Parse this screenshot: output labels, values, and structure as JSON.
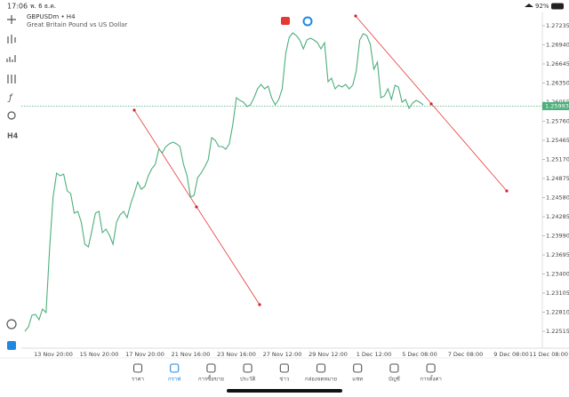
{
  "status_bar": {
    "time": "17:06",
    "date": "พ. 6 ธ.ค.",
    "battery": "92%"
  },
  "chart": {
    "type": "line",
    "symbol": "GBPUSDm • H4",
    "description": "Great Britain Pound vs US Dollar",
    "timeframe": "H4",
    "color": "#4caf7d",
    "values": [
      1.22515,
      1.22584,
      1.22762,
      1.22776,
      1.22694,
      1.22858,
      1.22803,
      1.23791,
      1.24587,
      1.24957,
      1.24916,
      1.24944,
      1.24683,
      1.24642,
      1.2434,
      1.24368,
      1.24203,
      1.2386,
      1.23819,
      1.24066,
      1.2434,
      1.24368,
      1.24038,
      1.24093,
      1.23997,
      1.2386,
      1.24203,
      1.24313,
      1.24368,
      1.24271,
      1.24477,
      1.24642,
      1.2482,
      1.24711,
      1.24752,
      1.24916,
      1.25026,
      1.25095,
      1.25328,
      1.25273,
      1.25369,
      1.2541,
      1.25438,
      1.2541,
      1.25369,
      1.25095,
      1.24916,
      1.24587,
      1.24614,
      1.24889,
      1.24957,
      1.25054,
      1.25163,
      1.25506,
      1.25465,
      1.25369,
      1.25369,
      1.25328,
      1.2541,
      1.25712,
      1.26124,
      1.26083,
      1.26055,
      1.25986,
      1.26014,
      1.26124,
      1.26261,
      1.26329,
      1.26261,
      1.26302,
      1.26124,
      1.26014,
      1.26096,
      1.26261,
      1.2681,
      1.27057,
      1.27125,
      1.27084,
      1.27015,
      1.26878,
      1.27015,
      1.27043,
      1.27015,
      1.26974,
      1.26878,
      1.26974,
      1.26371,
      1.26426,
      1.26261,
      1.26316,
      1.26288,
      1.26329,
      1.26261,
      1.26316,
      1.26535,
      1.27015,
      1.27112,
      1.27084,
      1.26947,
      1.26563,
      1.26672,
      1.26124,
      1.26151,
      1.26261,
      1.26096,
      1.26316,
      1.26288,
      1.26055,
      1.26096,
      1.25959,
      1.26041,
      1.26083,
      1.26055,
      1.26014
    ],
    "ylim": [
      1.22419,
      1.27441
    ],
    "yticks": [
      1.27235,
      {
        "value": 1.2694,
        "label": "1.26940"
      },
      1.26645,
      {
        "value": 1.2635,
        "label": "1.26350"
      },
      1.26055,
      {
        "value": 1.2576,
        "label": "1.25760"
      },
      1.25465,
      {
        "value": 1.2517,
        "label": "1.25170"
      },
      1.24875,
      {
        "value": 1.2458,
        "label": "1.24580"
      },
      1.24285,
      {
        "value": 1.2399,
        "label": "1.23990"
      },
      1.23695,
      {
        "value": 1.234,
        "label": "1.23400"
      },
      1.23105,
      {
        "value": 1.2281,
        "label": "1.22810"
      },
      1.22515
    ],
    "x_labels": [
      "13 Nov 20:00",
      "15 Nov 20:00",
      "17 Nov 20:00",
      "21 Nov 16:00",
      "23 Nov 16:00",
      "27 Nov 12:00",
      "29 Nov 12:00",
      "1 Dec 12:00",
      "5 Dec 08:00",
      "7 Dec 08:00",
      "9 Dec 08:00",
      "11 Dec 08:00"
    ],
    "current_price": 1.25993
  },
  "tab_bar": {
    "tabs": [
      "ราคา",
      "กราฟ",
      "การซื้อขาย",
      "ประวัติ",
      "ข่าว",
      "กล่องจดหมาย",
      "แชท",
      "บัญชี",
      "การตั้งค่า"
    ],
    "active": 1
  }
}
